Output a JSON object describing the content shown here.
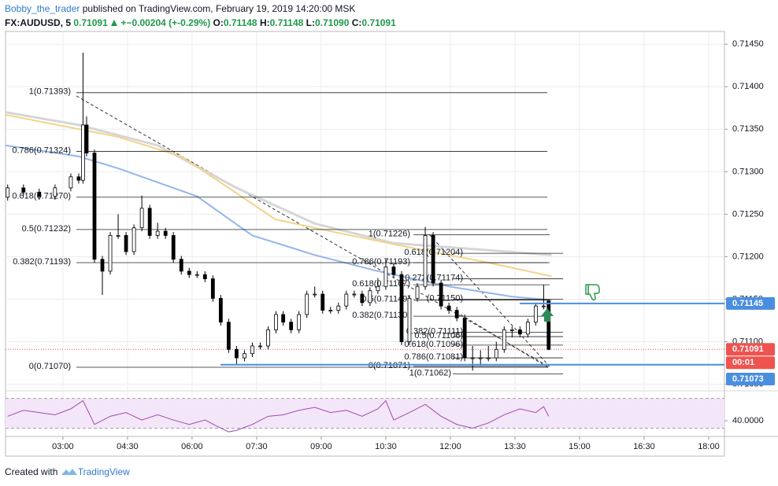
{
  "header": {
    "author": "Bobby_the_trader",
    "published": "published on TradingView.com, February 19, 2019 14:20:00 MSK",
    "symbol": "FX:AUDUSD, 5",
    "last": "0.71091",
    "change": "+−0.00204 (+-0.29%)",
    "o_label": "O:",
    "o": "0.71148",
    "h_label": "H:",
    "h": "0.71148",
    "l_label": "L:",
    "l": "0.71090",
    "c_label": "C:",
    "c": "0.71091"
  },
  "footer": {
    "created": "Created with",
    "brand": "TradingView"
  },
  "chart_data": {
    "type": "candlestick",
    "up_color": "#ffffff",
    "down_color": "#000000",
    "x": [
      103,
      125,
      147,
      169,
      191,
      202,
      208,
      213,
      224,
      235,
      246,
      257,
      268,
      279,
      290,
      301,
      312,
      323,
      334,
      345,
      356,
      367,
      378,
      389,
      400,
      411,
      422,
      433,
      444,
      455,
      466,
      477,
      487,
      498,
      509,
      520,
      531,
      542,
      553,
      564,
      575,
      586,
      597,
      608,
      619,
      630,
      641,
      652,
      663,
      674,
      685,
      696,
      707,
      718,
      729,
      740,
      751,
      762,
      773,
      784,
      795,
      806,
      817,
      828,
      839,
      850,
      857
    ],
    "open": [
      0.7127,
      0.71281,
      0.71276,
      0.71271,
      0.71281,
      0.71294,
      0.7129,
      0.71355,
      0.71322,
      0.71197,
      0.71183,
      0.71225,
      0.71225,
      0.71206,
      0.71234,
      0.71257,
      0.71225,
      0.7123,
      0.71225,
      0.71197,
      0.71183,
      0.71179,
      0.71179,
      0.71174,
      0.71151,
      0.71123,
      0.71091,
      0.71081,
      0.71086,
      0.71095,
      0.71095,
      0.71114,
      0.71132,
      0.71123,
      0.71114,
      0.71132,
      0.71156,
      0.71156,
      0.71137,
      0.71137,
      0.71142,
      0.71156,
      0.71156,
      0.71146,
      0.7116,
      0.71165,
      0.71188,
      0.71179,
      0.711,
      0.71151,
      0.71165,
      0.71225,
      0.71169,
      0.71142,
      0.71137,
      0.71128,
      0.71081,
      0.71081,
      0.71081,
      0.71081,
      0.71091,
      0.71114,
      0.71114,
      0.71109,
      0.71123,
      0.71142,
      0.71148
    ],
    "high": [
      0.71285,
      0.71285,
      0.7128,
      0.71285,
      0.71298,
      0.71298,
      0.7144,
      0.71365,
      0.71326,
      0.71201,
      0.71229,
      0.7125,
      0.71229,
      0.71238,
      0.71272,
      0.71261,
      0.7124,
      0.71234,
      0.71229,
      0.71201,
      0.71187,
      0.71183,
      0.71183,
      0.71178,
      0.71155,
      0.71127,
      0.71095,
      0.7109,
      0.71099,
      0.71099,
      0.71118,
      0.71136,
      0.71136,
      0.71127,
      0.71136,
      0.7116,
      0.71165,
      0.7116,
      0.71141,
      0.71146,
      0.7116,
      0.7116,
      0.7116,
      0.71164,
      0.71175,
      0.71197,
      0.71192,
      0.71183,
      0.71155,
      0.71169,
      0.71235,
      0.71229,
      0.71173,
      0.71146,
      0.71141,
      0.71132,
      0.71095,
      0.7109,
      0.71095,
      0.711,
      0.71118,
      0.71118,
      0.71118,
      0.71127,
      0.71146,
      0.71167,
      0.71148
    ],
    "low": [
      0.71266,
      0.71272,
      0.71267,
      0.71267,
      0.71277,
      0.71286,
      0.71286,
      0.71318,
      0.71193,
      0.71155,
      0.71179,
      0.71221,
      0.71202,
      0.71202,
      0.7123,
      0.71221,
      0.71221,
      0.71221,
      0.71193,
      0.71179,
      0.71175,
      0.71175,
      0.7117,
      0.71147,
      0.71119,
      0.71087,
      0.71073,
      0.71077,
      0.71082,
      0.71091,
      0.71091,
      0.7111,
      0.71119,
      0.7111,
      0.7111,
      0.71128,
      0.71152,
      0.71133,
      0.71133,
      0.71133,
      0.71138,
      0.71152,
      0.71142,
      0.71142,
      0.71156,
      0.71161,
      0.71175,
      0.71096,
      0.71096,
      0.71147,
      0.71161,
      0.71165,
      0.71138,
      0.71133,
      0.71124,
      0.71077,
      0.71066,
      0.71072,
      0.71077,
      0.71077,
      0.71087,
      0.71105,
      0.71105,
      0.71105,
      0.71119,
      0.71138,
      0.7109
    ],
    "close": [
      0.71281,
      0.71276,
      0.71271,
      0.71281,
      0.71294,
      0.7129,
      0.71355,
      0.71322,
      0.71197,
      0.71183,
      0.71225,
      0.71225,
      0.71206,
      0.71234,
      0.71257,
      0.71225,
      0.7123,
      0.71225,
      0.71197,
      0.71183,
      0.71179,
      0.71179,
      0.71174,
      0.71151,
      0.71123,
      0.71091,
      0.71081,
      0.71086,
      0.71095,
      0.71095,
      0.71114,
      0.71132,
      0.71123,
      0.71114,
      0.71132,
      0.71156,
      0.71156,
      0.71137,
      0.71137,
      0.71142,
      0.71156,
      0.71156,
      0.71146,
      0.7116,
      0.71165,
      0.71188,
      0.71179,
      0.711,
      0.71151,
      0.71165,
      0.71225,
      0.71169,
      0.71142,
      0.71137,
      0.71128,
      0.71081,
      0.71081,
      0.71081,
      0.71081,
      0.71091,
      0.71114,
      0.71114,
      0.71109,
      0.71123,
      0.71142,
      0.71142,
      0.71091
    ],
    "series": [
      {
        "color": "#d6d6d6",
        "x": [
          100,
          202,
          312,
          422,
          531,
          641,
          861
        ],
        "values": [
          0.7137,
          0.71355,
          0.71331,
          0.71281,
          0.71239,
          0.71216,
          0.71202
        ]
      },
      {
        "color": "#f2d38a",
        "x": [
          100,
          257,
          345,
          411,
          476,
          564,
          663,
          773,
          861
        ],
        "values": [
          0.71367,
          0.71341,
          0.71318,
          0.71281,
          0.71244,
          0.71228,
          0.71211,
          0.71193,
          0.71177
        ]
      },
      {
        "color": "#94b6ea",
        "x": [
          100,
          202,
          257,
          367,
          444,
          531,
          619,
          718,
          806,
          861
        ],
        "values": [
          0.71331,
          0.71318,
          0.71304,
          0.71271,
          0.71225,
          0.71202,
          0.71183,
          0.71165,
          0.71153,
          0.71149
        ]
      }
    ],
    "xlim": [
      100,
      1102
    ],
    "xticks": [
      {
        "value": 180,
        "label": "03:00"
      },
      {
        "value": 270,
        "label": "04:30"
      },
      {
        "value": 360,
        "label": "06:00"
      },
      {
        "value": 450,
        "label": "07:30"
      },
      {
        "value": 540,
        "label": "09:00"
      },
      {
        "value": 630,
        "label": "10:30"
      },
      {
        "value": 720,
        "label": "12:00"
      },
      {
        "value": 810,
        "label": "13:30"
      },
      {
        "value": 900,
        "label": "15:00"
      },
      {
        "value": 990,
        "label": "16:30"
      },
      {
        "value": 1080,
        "label": "18:00"
      }
    ],
    "ylim": [
      0.71045,
      0.71465
    ],
    "yticks": [
      {
        "value": 0.7145,
        "label": "0.71450"
      },
      {
        "value": 0.714,
        "label": "0.71400"
      },
      {
        "value": 0.7135,
        "label": "0.71350"
      },
      {
        "value": 0.713,
        "label": "0.71300"
      },
      {
        "value": 0.7125,
        "label": "0.71250"
      },
      {
        "value": 0.712,
        "label": "0.71200"
      },
      {
        "value": 0.7115,
        "label": "0.71150"
      },
      {
        "value": 0.711,
        "label": "0.71100"
      },
      {
        "value": 0.7105,
        "label": "0.71050"
      }
    ],
    "grid": true,
    "fib_left": [
      {
        "value": 0.71393,
        "label": "1(0.71393)"
      },
      {
        "value": 0.71324,
        "label": "0.786(0.71324)"
      },
      {
        "value": 0.7127,
        "label": "0.618(0.71270)"
      },
      {
        "value": 0.71232,
        "label": "0.5(0.71232)"
      },
      {
        "value": 0.71193,
        "label": "0.382(0.71193)"
      },
      {
        "value": 0.7107,
        "label": "0(0.71070)"
      }
    ],
    "fib_right_a": [
      {
        "value": 0.71226,
        "label": "1(0.71226)"
      },
      {
        "value": 0.71193,
        "label": "0.786(0.71193)"
      },
      {
        "value": 0.71167,
        "label": "0.618(0.71167)"
      },
      {
        "value": 0.71149,
        "label": "0.5(0.71149)"
      },
      {
        "value": 0.7113,
        "label": "0.382(0.71130)"
      },
      {
        "value": 0.71071,
        "label": "0(0.71071)"
      }
    ],
    "fib_right_b": [
      {
        "value": 0.71204,
        "label": "0.618(0.71204)"
      },
      {
        "value": 0.71174,
        "label": "0.272(0.71174)"
      },
      {
        "value": 0.7115,
        "label": "(0.71150)"
      },
      {
        "value": 0.71111,
        "label": "0.382(0.71111)"
      },
      {
        "value": 0.71106,
        "label": "0.5(0.71106)"
      },
      {
        "value": 0.71096,
        "label": "0.618(0.71096)"
      },
      {
        "value": 0.71081,
        "label": "0.786(0.71081)"
      },
      {
        "value": 0.71062,
        "label": "1(0.71062)"
      }
    ],
    "price_lines": [
      {
        "value": 0.71145,
        "label": "0.71145",
        "color": "#4a8ee0"
      },
      {
        "value": 0.71073,
        "label": "0.71073",
        "color": "#4a8ee0"
      }
    ],
    "last_price": {
      "value": 0.71091,
      "label": "0.71091",
      "countdown": "00:01",
      "color": "#ef5350"
    },
    "rsi": {
      "color": "#a24bb0",
      "x": [
        103,
        125,
        147,
        169,
        191,
        208,
        224,
        246,
        268,
        290,
        312,
        334,
        356,
        378,
        400,
        411,
        422,
        444,
        466,
        487,
        509,
        531,
        553,
        575,
        597,
        619,
        630,
        641,
        663,
        685,
        707,
        729,
        751,
        773,
        795,
        817,
        839,
        850,
        857
      ],
      "values": [
        46,
        54,
        51,
        48,
        56,
        67,
        35,
        46,
        51,
        41,
        48,
        41,
        35,
        41,
        30,
        25,
        27,
        35,
        46,
        48,
        54,
        58,
        51,
        54,
        46,
        56,
        67,
        41,
        51,
        62,
        46,
        35,
        30,
        37,
        48,
        56,
        51,
        59,
        46
      ],
      "ylim": [
        22,
        76
      ],
      "yticks": [
        {
          "value": 40,
          "label": "40.0000"
        }
      ],
      "bands": [
        30,
        70
      ]
    }
  }
}
